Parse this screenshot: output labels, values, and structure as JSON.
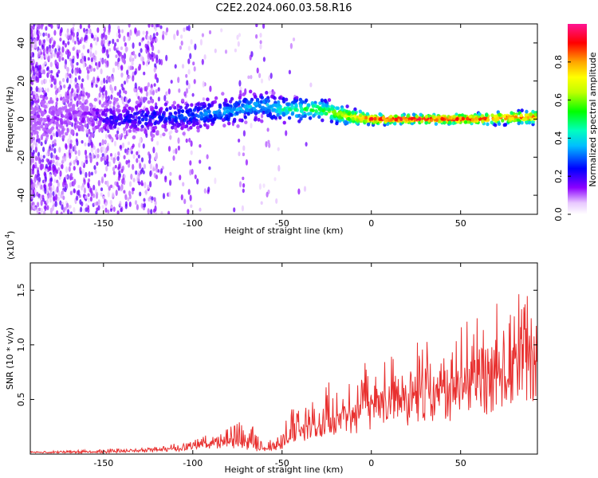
{
  "title": "C2E2.2024.060.03.58.R16",
  "chart_data": [
    {
      "type": "heatmap",
      "panel": "top",
      "xlabel": "Height of straight line (km)",
      "ylabel": "Frequency (Hz)",
      "xlim": [
        -191,
        93
      ],
      "ylim": [
        -50,
        50
      ],
      "xticks": [
        -150,
        -100,
        -50,
        0,
        50
      ],
      "yticks": [
        -40,
        -20,
        0,
        20,
        40
      ],
      "grid": false,
      "colorbar": {
        "label": "Normalized spectral amplitude",
        "range": [
          0,
          1
        ],
        "ticks": [
          "0.0",
          "0.2",
          "0.4",
          "0.6",
          "0.8"
        ]
      },
      "ridge": {
        "x": [
          -191,
          -160,
          -150,
          -140,
          -120,
          -100,
          -90,
          -80,
          -70,
          -60,
          -50,
          -40,
          -30,
          -20,
          -10,
          0,
          20,
          40,
          60,
          80,
          93
        ],
        "frequency_hz": [
          0,
          1,
          0,
          0,
          1,
          2,
          3,
          4,
          6,
          7,
          5,
          5,
          5,
          3,
          1,
          0,
          0,
          0,
          0,
          1,
          1
        ],
        "amplitude": [
          0.1,
          0.12,
          0.2,
          0.22,
          0.25,
          0.3,
          0.32,
          0.35,
          0.38,
          0.35,
          0.45,
          0.5,
          0.55,
          0.65,
          0.75,
          0.92,
          0.95,
          0.95,
          0.9,
          0.85,
          0.85
        ]
      }
    },
    {
      "type": "line",
      "panel": "bottom",
      "xlabel": "Height of straight line (km)",
      "ylabel": "SNR (10 * v/v)",
      "scale_label": "(x10",
      "scale_exponent": "4",
      "xlim": [
        -191,
        93
      ],
      "ylim": [
        0,
        1.75
      ],
      "xticks": [
        -150,
        -100,
        -50,
        0,
        50
      ],
      "yticks": [
        "0.5",
        "1.0",
        "1.5"
      ],
      "color": "#e8302f",
      "series": [
        {
          "x": [
            -191,
            -170,
            -150,
            -130,
            -120,
            -110,
            -100,
            -90,
            -80,
            -70,
            -60,
            -50,
            -45,
            -40,
            -30,
            -20,
            -10,
            0,
            10,
            20,
            30,
            40,
            50,
            60,
            70,
            80,
            85,
            90,
            93
          ],
          "y": [
            0.02,
            0.02,
            0.02,
            0.03,
            0.04,
            0.05,
            0.07,
            0.1,
            0.12,
            0.1,
            0.04,
            0.08,
            0.18,
            0.25,
            0.3,
            0.35,
            0.42,
            0.5,
            0.55,
            0.6,
            0.65,
            0.7,
            0.75,
            0.85,
            0.9,
            0.92,
            1.1,
            0.95,
            1.05
          ],
          "peak": [
            0.03,
            0.04,
            0.05,
            0.06,
            0.08,
            0.1,
            0.15,
            0.2,
            0.28,
            0.35,
            0.1,
            0.25,
            0.45,
            0.55,
            0.6,
            0.75,
            0.8,
            0.95,
            1.0,
            1.05,
            1.1,
            1.15,
            1.2,
            1.3,
            1.4,
            1.45,
            1.7,
            1.5,
            1.55
          ]
        }
      ]
    }
  ]
}
